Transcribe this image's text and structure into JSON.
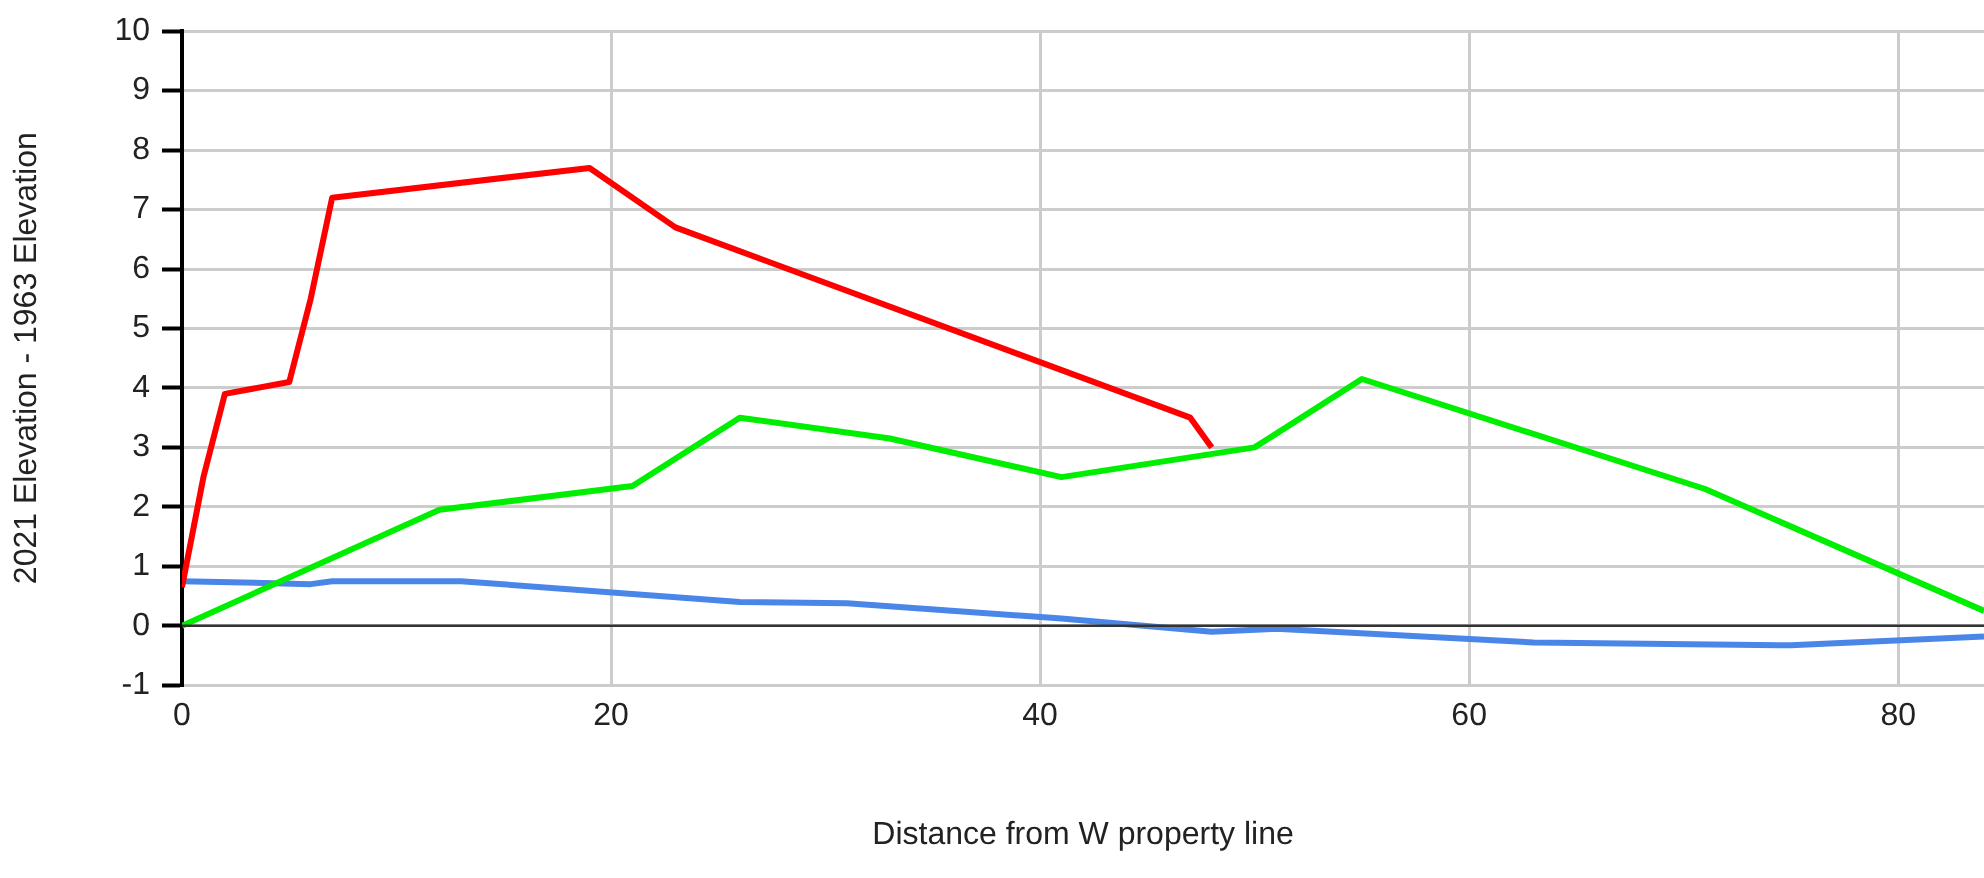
{
  "chart_data": {
    "type": "line",
    "xlabel": "Distance from W property line",
    "ylabel": "2021 Elevation - 1963 Elevation",
    "xlim": [
      0,
      84
    ],
    "xticks": [
      0,
      20,
      40,
      60,
      80
    ],
    "ylim": [
      -1,
      10
    ],
    "yticks": [
      -1,
      0,
      1,
      2,
      3,
      4,
      5,
      6,
      7,
      8,
      9,
      10
    ],
    "grid": true,
    "legend": false,
    "marker": "none",
    "series": [
      {
        "color": "#ff0000",
        "x": [
          0,
          1,
          2,
          5,
          6,
          7,
          19,
          23,
          47,
          48
        ],
        "values": [
          0.65,
          2.5,
          3.9,
          4.1,
          5.5,
          7.2,
          7.7,
          6.7,
          3.5,
          3.0
        ]
      },
      {
        "color": "#00ee00",
        "x": [
          0,
          12,
          21,
          26,
          33,
          41,
          50,
          55,
          71,
          84
        ],
        "values": [
          0,
          1.95,
          2.35,
          3.5,
          3.15,
          2.5,
          3.0,
          4.15,
          2.3,
          0.25
        ]
      },
      {
        "color": "#4a86e8",
        "x": [
          0,
          6,
          7,
          13,
          26,
          31,
          41,
          48,
          51,
          63,
          75,
          84
        ],
        "values": [
          0.75,
          0.7,
          0.75,
          0.75,
          0.4,
          0.38,
          0.12,
          -0.1,
          -0.05,
          -0.28,
          -0.33,
          -0.18
        ]
      }
    ]
  }
}
